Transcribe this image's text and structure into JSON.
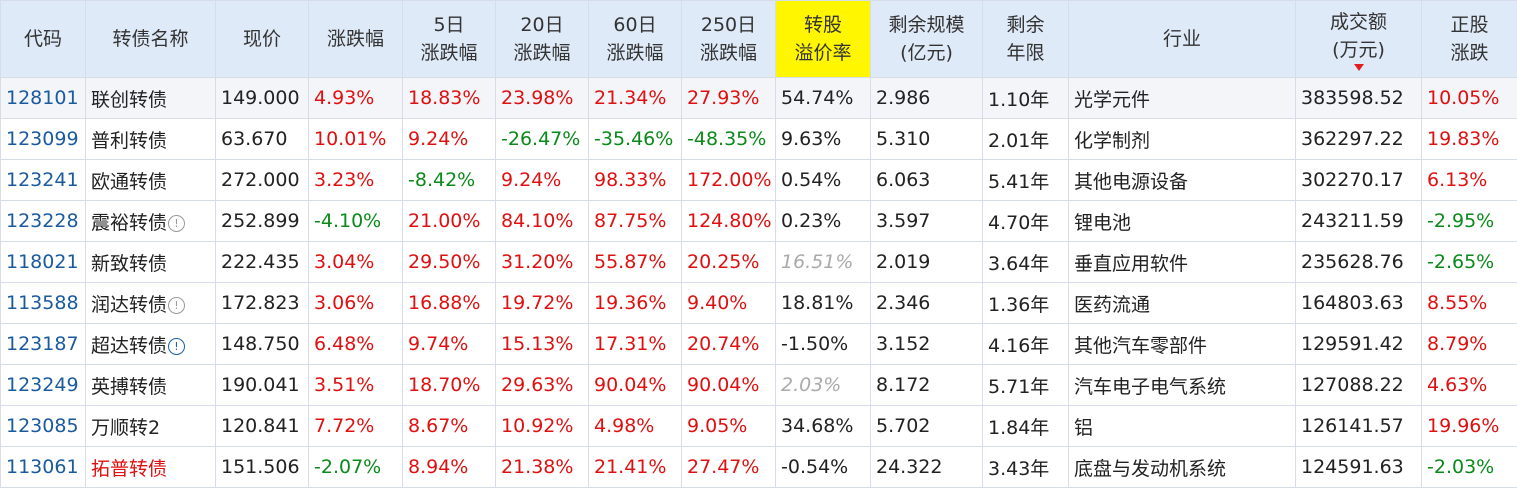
{
  "table": {
    "header": [
      [
        "代码"
      ],
      [
        "转债名称"
      ],
      [
        "现价"
      ],
      [
        "涨跌幅"
      ],
      [
        "5日",
        "涨跌幅"
      ],
      [
        "20日",
        "涨跌幅"
      ],
      [
        "60日",
        "涨跌幅"
      ],
      [
        "250日",
        "涨跌幅"
      ],
      [
        "转股",
        "溢价率"
      ],
      [
        "剩余规模",
        "(亿元)"
      ],
      [
        "剩余",
        "年限"
      ],
      [
        "行业"
      ],
      [
        "成交额",
        "(万元)"
      ],
      [
        "正股",
        "涨跌"
      ]
    ],
    "rows": [
      [
        "128101",
        "联创转债",
        "149.000",
        "4.93%",
        "18.83%",
        "23.98%",
        "21.34%",
        "27.93%",
        "54.74%",
        "2.986",
        "1.10年",
        "光学元件",
        "383598.52",
        "10.05%"
      ],
      [
        "123099",
        "普利转债",
        "63.670",
        "10.01%",
        "9.24%",
        "-26.47%",
        "-35.46%",
        "-48.35%",
        "9.63%",
        "5.310",
        "2.01年",
        "化学制剂",
        "362297.22",
        "19.83%"
      ],
      [
        "123241",
        "欧通转债",
        "272.000",
        "3.23%",
        "-8.42%",
        "9.24%",
        "98.33%",
        "172.00%",
        "0.54%",
        "6.063",
        "5.41年",
        "其他电源设备",
        "302270.17",
        "6.13%"
      ],
      [
        "123228",
        "震裕转债",
        "252.899",
        "-4.10%",
        "21.00%",
        "84.10%",
        "87.75%",
        "124.80%",
        "0.23%",
        "3.597",
        "4.70年",
        "锂电池",
        "243211.59",
        "-2.95%"
      ],
      [
        "118021",
        "新致转债",
        "222.435",
        "3.04%",
        "29.50%",
        "31.20%",
        "55.87%",
        "20.25%",
        "16.51%",
        "2.019",
        "3.64年",
        "垂直应用软件",
        "235628.76",
        "-2.65%"
      ],
      [
        "113588",
        "润达转债",
        "172.823",
        "3.06%",
        "16.88%",
        "19.72%",
        "19.36%",
        "9.40%",
        "18.81%",
        "2.346",
        "1.36年",
        "医药流通",
        "164803.63",
        "8.55%"
      ],
      [
        "123187",
        "超达转债",
        "148.750",
        "6.48%",
        "9.74%",
        "15.13%",
        "17.31%",
        "20.74%",
        "-1.50%",
        "3.152",
        "4.16年",
        "其他汽车零部件",
        "129591.42",
        "8.79%"
      ],
      [
        "123249",
        "英搏转债",
        "190.041",
        "3.51%",
        "18.70%",
        "29.63%",
        "90.04%",
        "90.04%",
        "2.03%",
        "8.172",
        "5.71年",
        "汽车电子电气系统",
        "127088.22",
        "4.63%"
      ],
      [
        "123085",
        "万顺转2",
        "120.841",
        "7.72%",
        "8.67%",
        "10.92%",
        "4.98%",
        "9.05%",
        "34.68%",
        "5.702",
        "1.84年",
        "铝",
        "126141.57",
        "19.96%"
      ],
      [
        "113061",
        "拓普转债",
        "151.506",
        "-2.07%",
        "8.94%",
        "21.38%",
        "21.41%",
        "27.47%",
        "-0.54%",
        "24.322",
        "3.43年",
        "底盘与发动机系统",
        "124591.63",
        "-2.03%"
      ]
    ]
  }
}
